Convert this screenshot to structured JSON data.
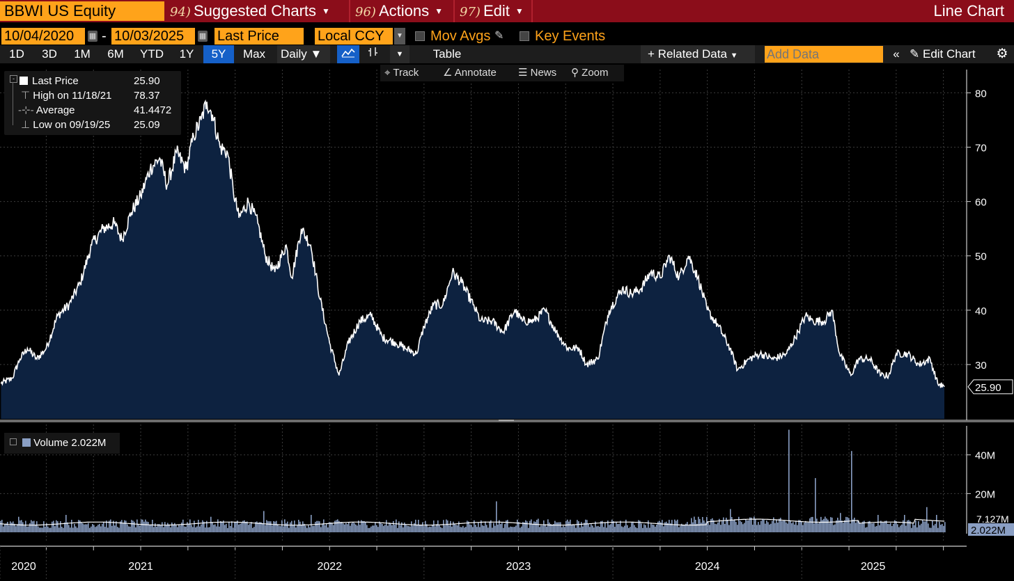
{
  "header": {
    "ticker": "BBWI US Equity",
    "menus": [
      {
        "num": "94)",
        "label": "Suggested Charts"
      },
      {
        "num": "96)",
        "label": "Actions"
      },
      {
        "num": "97)",
        "label": "Edit"
      }
    ],
    "chart_type": "Line Chart"
  },
  "controls": {
    "start_date": "10/04/2020",
    "date_sep": "-",
    "end_date": "10/03/2025",
    "field": "Last Price",
    "currency": "Local CCY",
    "mov_avgs": "Mov Avgs",
    "key_events": "Key Events",
    "periods": [
      "1D",
      "3D",
      "1M",
      "6M",
      "YTD",
      "1Y",
      "5Y",
      "Max"
    ],
    "active_period": "5Y",
    "frequency": "Daily",
    "table": "Table",
    "related_data": "Related Data",
    "add_data_placeholder": "Add Data",
    "edit_chart": "Edit Chart"
  },
  "toolstrip": {
    "track": "Track",
    "annotate": "Annotate",
    "news": "News",
    "zoom": "Zoom"
  },
  "legend": {
    "last_label": "Last Price",
    "last_value": "25.90",
    "high_label": "High on 11/18/21",
    "high_value": "78.37",
    "avg_label": "Average",
    "avg_value": "41.4472",
    "low_label": "Low on 09/19/25",
    "low_value": "25.09"
  },
  "volume_legend": {
    "label": "Volume",
    "value": "2.022M"
  },
  "colors": {
    "accent": "#ffa31a",
    "topbar": "#8b0d1a",
    "area": "#0d2240",
    "volume": "#8a9fc4",
    "active": "#1560c8"
  },
  "chart_data": [
    {
      "type": "area",
      "title": "BBWI US Equity — Last Price",
      "x_ticks": [
        "2020",
        "2021",
        "2022",
        "2023",
        "2024",
        "2025"
      ],
      "x_tick_dates": [
        2020.755,
        2021.0,
        2022.0,
        2023.0,
        2024.0,
        2025.0
      ],
      "x_range": [
        2020.755,
        2025.755
      ],
      "y_ticks": [
        30,
        40,
        50,
        60,
        70,
        80
      ],
      "ylim": [
        20,
        83
      ],
      "last_value": 25.9,
      "last_label": "25.90",
      "series": [
        {
          "name": "Last Price",
          "points": [
            [
              2020.76,
              26.5
            ],
            [
              2020.82,
              27.5
            ],
            [
              2020.86,
              31
            ],
            [
              2020.9,
              33
            ],
            [
              2020.95,
              31
            ],
            [
              2021.0,
              33
            ],
            [
              2021.06,
              39
            ],
            [
              2021.12,
              41
            ],
            [
              2021.18,
              45
            ],
            [
              2021.24,
              52
            ],
            [
              2021.3,
              55
            ],
            [
              2021.36,
              56
            ],
            [
              2021.4,
              53
            ],
            [
              2021.45,
              58
            ],
            [
              2021.5,
              61
            ],
            [
              2021.55,
              66
            ],
            [
              2021.6,
              68
            ],
            [
              2021.64,
              63
            ],
            [
              2021.69,
              69
            ],
            [
              2021.74,
              66
            ],
            [
              2021.78,
              72
            ],
            [
              2021.82,
              75
            ],
            [
              2021.85,
              78.37
            ],
            [
              2021.88,
              76
            ],
            [
              2021.92,
              70
            ],
            [
              2021.96,
              69
            ],
            [
              2021.99,
              62
            ],
            [
              2022.02,
              57
            ],
            [
              2022.07,
              60
            ],
            [
              2022.12,
              56
            ],
            [
              2022.16,
              50
            ],
            [
              2022.21,
              47
            ],
            [
              2022.27,
              52
            ],
            [
              2022.3,
              46
            ],
            [
              2022.35,
              55
            ],
            [
              2022.4,
              52
            ],
            [
              2022.45,
              42
            ],
            [
              2022.5,
              34
            ],
            [
              2022.55,
              28
            ],
            [
              2022.6,
              34
            ],
            [
              2022.66,
              38
            ],
            [
              2022.72,
              39
            ],
            [
              2022.78,
              35
            ],
            [
              2022.85,
              34
            ],
            [
              2022.9,
              33
            ],
            [
              2022.96,
              32
            ],
            [
              2023.0,
              37
            ],
            [
              2023.05,
              41
            ],
            [
              2023.1,
              41
            ],
            [
              2023.15,
              47
            ],
            [
              2023.2,
              45
            ],
            [
              2023.26,
              41
            ],
            [
              2023.3,
              38
            ],
            [
              2023.36,
              38
            ],
            [
              2023.42,
              36
            ],
            [
              2023.48,
              40
            ],
            [
              2023.52,
              38
            ],
            [
              2023.58,
              38
            ],
            [
              2023.64,
              40
            ],
            [
              2023.7,
              36
            ],
            [
              2023.76,
              33
            ],
            [
              2023.82,
              33
            ],
            [
              2023.86,
              30
            ],
            [
              2023.92,
              31
            ],
            [
              2023.98,
              40
            ],
            [
              2024.05,
              44
            ],
            [
              2024.1,
              43
            ],
            [
              2024.15,
              44
            ],
            [
              2024.2,
              47
            ],
            [
              2024.25,
              46
            ],
            [
              2024.3,
              50
            ],
            [
              2024.35,
              46
            ],
            [
              2024.4,
              50
            ],
            [
              2024.45,
              46
            ],
            [
              2024.5,
              40
            ],
            [
              2024.56,
              37
            ],
            [
              2024.62,
              33
            ],
            [
              2024.66,
              29
            ],
            [
              2024.72,
              31
            ],
            [
              2024.78,
              32
            ],
            [
              2024.85,
              31
            ],
            [
              2024.92,
              32
            ],
            [
              2024.98,
              36
            ],
            [
              2025.02,
              39
            ],
            [
              2025.06,
              38
            ],
            [
              2025.12,
              38
            ],
            [
              2025.16,
              40
            ],
            [
              2025.2,
              32
            ],
            [
              2025.26,
              28
            ],
            [
              2025.3,
              31
            ],
            [
              2025.36,
              31
            ],
            [
              2025.42,
              28
            ],
            [
              2025.46,
              28
            ],
            [
              2025.5,
              32
            ],
            [
              2025.56,
              32
            ],
            [
              2025.62,
              30
            ],
            [
              2025.68,
              31
            ],
            [
              2025.72,
              26.5
            ],
            [
              2025.755,
              25.9
            ]
          ]
        }
      ]
    },
    {
      "type": "bar",
      "title": "Volume",
      "y_ticks_labels": [
        "20M",
        "40M"
      ],
      "y_ticks": [
        20,
        40
      ],
      "ylim": [
        0,
        55
      ],
      "last_value_label": "2.022M",
      "ma_label": "7.127M",
      "spikes": [
        [
          2020.85,
          8
        ],
        [
          2021.1,
          9
        ],
        [
          2021.35,
          10
        ],
        [
          2021.6,
          8
        ],
        [
          2021.87,
          8
        ],
        [
          2022.15,
          11
        ],
        [
          2022.25,
          7
        ],
        [
          2022.4,
          9
        ],
        [
          2022.58,
          13
        ],
        [
          2022.75,
          8
        ],
        [
          2022.95,
          9
        ],
        [
          2023.38,
          16
        ],
        [
          2023.6,
          7
        ],
        [
          2023.85,
          8
        ],
        [
          2024.18,
          9
        ],
        [
          2024.45,
          8
        ],
        [
          2024.62,
          12
        ],
        [
          2024.72,
          11
        ],
        [
          2024.8,
          15
        ],
        [
          2024.93,
          53
        ],
        [
          2025.07,
          28
        ],
        [
          2025.2,
          10
        ],
        [
          2025.26,
          42
        ],
        [
          2025.4,
          9
        ],
        [
          2025.54,
          9
        ],
        [
          2025.66,
          13
        ],
        [
          2025.71,
          9
        ]
      ]
    }
  ]
}
